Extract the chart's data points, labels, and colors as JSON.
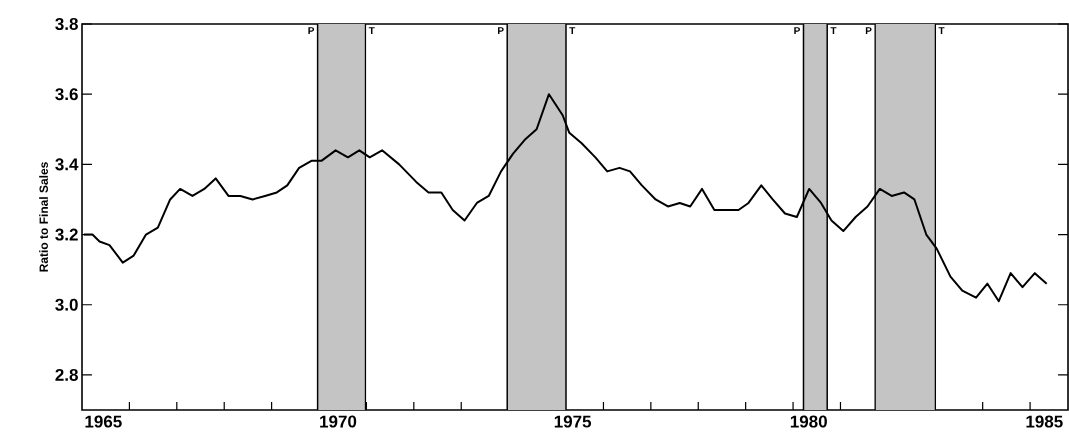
{
  "chart_data": {
    "type": "line",
    "ylabel": "Ratio to Final Sales",
    "x": [
      1965.04,
      1965.22,
      1965.37,
      1965.58,
      1965.86,
      1966.09,
      1966.35,
      1966.6,
      1966.86,
      1967.07,
      1967.33,
      1967.58,
      1967.82,
      1968.09,
      1968.34,
      1968.6,
      1968.86,
      1969.11,
      1969.33,
      1969.58,
      1969.84,
      1970.05,
      1970.35,
      1970.61,
      1970.85,
      1971.07,
      1971.33,
      1971.69,
      1972.05,
      1972.31,
      1972.58,
      1972.82,
      1973.07,
      1973.33,
      1973.58,
      1973.84,
      1974.09,
      1974.34,
      1974.59,
      1974.85,
      1975.14,
      1975.28,
      1975.54,
      1975.83,
      1976.08,
      1976.34,
      1976.56,
      1976.81,
      1977.1,
      1977.36,
      1977.61,
      1977.83,
      1978.08,
      1978.34,
      1978.59,
      1978.85,
      1979.06,
      1979.33,
      1979.57,
      1979.83,
      1980.08,
      1980.34,
      1980.59,
      1980.81,
      1981.06,
      1981.32,
      1981.57,
      1981.83,
      1982.08,
      1982.34,
      1982.56,
      1982.81,
      1983.03,
      1983.32,
      1983.57,
      1983.86,
      1984.1,
      1984.34,
      1984.59,
      1984.84,
      1985.1,
      1985.35
    ],
    "series": [
      {
        "color": "#000000",
        "values": [
          3.2,
          3.2,
          3.18,
          3.17,
          3.12,
          3.14,
          3.2,
          3.22,
          3.3,
          3.33,
          3.31,
          3.33,
          3.36,
          3.31,
          3.31,
          3.3,
          3.31,
          3.32,
          3.34,
          3.39,
          3.41,
          3.41,
          3.44,
          3.42,
          3.44,
          3.42,
          3.44,
          3.4,
          3.35,
          3.32,
          3.32,
          3.27,
          3.24,
          3.29,
          3.31,
          3.38,
          3.43,
          3.47,
          3.5,
          3.6,
          3.54,
          3.49,
          3.46,
          3.42,
          3.38,
          3.39,
          3.38,
          3.34,
          3.3,
          3.28,
          3.29,
          3.28,
          3.33,
          3.27,
          3.27,
          3.27,
          3.29,
          3.34,
          3.3,
          3.26,
          3.25,
          3.33,
          3.29,
          3.24,
          3.21,
          3.25,
          3.28,
          3.33,
          3.31,
          3.32,
          3.3,
          3.2,
          3.16,
          3.08,
          3.04,
          3.02,
          3.06,
          3.01,
          3.09,
          3.05,
          3.09,
          3.06
        ]
      }
    ],
    "xlim": [
      1965,
      1985.8
    ],
    "ylim": [
      2.7,
      3.8
    ],
    "xticks": [
      {
        "value": 1965.45,
        "label": "1965"
      },
      {
        "value": 1970.4,
        "label": "1970"
      },
      {
        "value": 1975.35,
        "label": "1975"
      },
      {
        "value": 1980.33,
        "label": "1980"
      },
      {
        "value": 1985.3,
        "label": "1985"
      },
      {
        "value": 1966,
        "label": null
      },
      {
        "value": 1967,
        "label": null
      },
      {
        "value": 1968,
        "label": null
      },
      {
        "value": 1969,
        "label": null
      },
      {
        "value": 1970,
        "label": null
      },
      {
        "value": 1971,
        "label": null
      },
      {
        "value": 1972,
        "label": null
      },
      {
        "value": 1973,
        "label": null
      },
      {
        "value": 1974,
        "label": null
      },
      {
        "value": 1975,
        "label": null
      },
      {
        "value": 1976,
        "label": null
      },
      {
        "value": 1977,
        "label": null
      },
      {
        "value": 1978,
        "label": null
      },
      {
        "value": 1979,
        "label": null
      },
      {
        "value": 1980,
        "label": null
      },
      {
        "value": 1981,
        "label": null
      },
      {
        "value": 1982,
        "label": null
      },
      {
        "value": 1983,
        "label": null
      },
      {
        "value": 1984,
        "label": null
      },
      {
        "value": 1985,
        "label": null
      }
    ],
    "yticks": [
      {
        "value": 2.8,
        "label": "2.8"
      },
      {
        "value": 3.0,
        "label": "3.0"
      },
      {
        "value": 3.2,
        "label": "3.2"
      },
      {
        "value": 3.4,
        "label": "3.4"
      },
      {
        "value": 3.6,
        "label": "3.6"
      },
      {
        "value": 3.8,
        "label": "3.8"
      }
    ],
    "bands": [
      {
        "axis": "x",
        "from": 1969.97,
        "to": 1970.98,
        "color": "#c4c4c4"
      },
      {
        "axis": "x",
        "from": 1973.97,
        "to": 1975.21,
        "color": "#c4c4c4"
      },
      {
        "axis": "x",
        "from": 1980.22,
        "to": 1980.72,
        "color": "#c4c4c4"
      },
      {
        "axis": "x",
        "from": 1981.73,
        "to": 1983.0,
        "color": "#c4c4c4"
      }
    ],
    "ref_lines": [
      {
        "axis": "x",
        "value": 1969.97,
        "label": "P"
      },
      {
        "axis": "x",
        "value": 1970.98,
        "label": "T"
      },
      {
        "axis": "x",
        "value": 1973.97,
        "label": "P"
      },
      {
        "axis": "x",
        "value": 1975.21,
        "label": "T"
      },
      {
        "axis": "x",
        "value": 1980.22,
        "label": "P"
      },
      {
        "axis": "x",
        "value": 1980.72,
        "label": "T"
      },
      {
        "axis": "x",
        "value": 1981.73,
        "label": "P"
      },
      {
        "axis": "x",
        "value": 1983.0,
        "label": "T"
      }
    ],
    "grid": false,
    "marker": "none",
    "line_style": "solid"
  }
}
